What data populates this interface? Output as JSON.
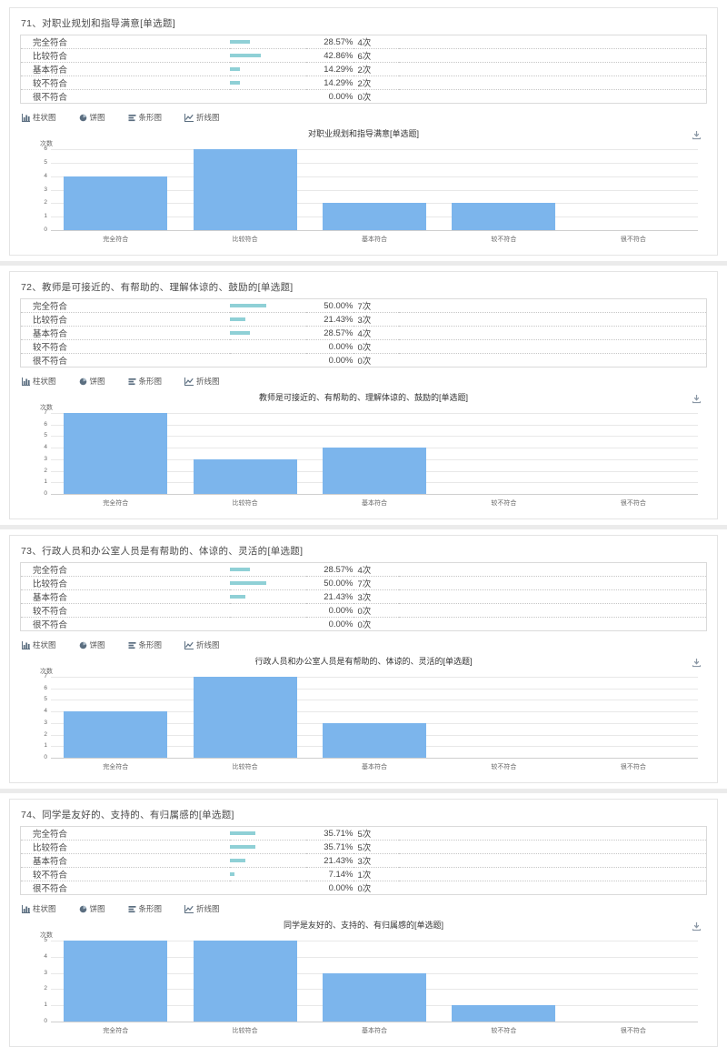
{
  "ui": {
    "y_axis_label": "次数",
    "chart_type_buttons": [
      {
        "label": "柱状图",
        "icon": "bar-chart-icon"
      },
      {
        "label": "饼图",
        "icon": "pie-chart-icon"
      },
      {
        "label": "条形图",
        "icon": "horizontal-bar-chart-icon"
      },
      {
        "label": "折线图",
        "icon": "line-chart-icon"
      }
    ],
    "download_icon": "download-icon",
    "colors": {
      "table_percent_bar": "#8fd0d6",
      "chart_bar": "#7cb5ec",
      "grid_line": "#e8e8e8",
      "panel_border": "#e4e4e4"
    }
  },
  "questions": [
    {
      "title": "71、对职业规划和指导满意[单选题]",
      "rows": [
        {
          "label": "完全符合",
          "percent": "28.57%",
          "count": "4次",
          "value": 28.57
        },
        {
          "label": "比较符合",
          "percent": "42.86%",
          "count": "6次",
          "value": 42.86
        },
        {
          "label": "基本符合",
          "percent": "14.29%",
          "count": "2次",
          "value": 14.29
        },
        {
          "label": "较不符合",
          "percent": "14.29%",
          "count": "2次",
          "value": 14.29
        },
        {
          "label": "很不符合",
          "percent": "0.00%",
          "count": "0次",
          "value": 0
        }
      ]
    },
    {
      "title": "72、教师是可接近的、有帮助的、理解体谅的、鼓励的[单选题]",
      "rows": [
        {
          "label": "完全符合",
          "percent": "50.00%",
          "count": "7次",
          "value": 50.0
        },
        {
          "label": "比较符合",
          "percent": "21.43%",
          "count": "3次",
          "value": 21.43
        },
        {
          "label": "基本符合",
          "percent": "28.57%",
          "count": "4次",
          "value": 28.57
        },
        {
          "label": "较不符合",
          "percent": "0.00%",
          "count": "0次",
          "value": 0
        },
        {
          "label": "很不符合",
          "percent": "0.00%",
          "count": "0次",
          "value": 0
        }
      ]
    },
    {
      "title": "73、行政人员和办公室人员是有帮助的、体谅的、灵活的[单选题]",
      "rows": [
        {
          "label": "完全符合",
          "percent": "28.57%",
          "count": "4次",
          "value": 28.57
        },
        {
          "label": "比较符合",
          "percent": "50.00%",
          "count": "7次",
          "value": 50.0
        },
        {
          "label": "基本符合",
          "percent": "21.43%",
          "count": "3次",
          "value": 21.43
        },
        {
          "label": "较不符合",
          "percent": "0.00%",
          "count": "0次",
          "value": 0
        },
        {
          "label": "很不符合",
          "percent": "0.00%",
          "count": "0次",
          "value": 0
        }
      ]
    },
    {
      "title": "74、同学是友好的、支持的、有归属感的[单选题]",
      "rows": [
        {
          "label": "完全符合",
          "percent": "35.71%",
          "count": "5次",
          "value": 35.71
        },
        {
          "label": "比较符合",
          "percent": "35.71%",
          "count": "5次",
          "value": 35.71
        },
        {
          "label": "基本符合",
          "percent": "21.43%",
          "count": "3次",
          "value": 21.43
        },
        {
          "label": "较不符合",
          "percent": "7.14%",
          "count": "1次",
          "value": 7.14
        },
        {
          "label": "很不符合",
          "percent": "0.00%",
          "count": "0次",
          "value": 0
        }
      ]
    }
  ],
  "chart_data": [
    {
      "type": "bar",
      "title": "对职业规划和指导满意[单选题]",
      "categories": [
        "完全符合",
        "比较符合",
        "基本符合",
        "较不符合",
        "很不符合"
      ],
      "values": [
        4,
        6,
        2,
        2,
        0
      ],
      "xlabel": "",
      "ylabel": "次数",
      "ylim": [
        0,
        6
      ],
      "grid": true,
      "legend": "none"
    },
    {
      "type": "bar",
      "title": "教师是可接近的、有帮助的、理解体谅的、鼓励的[单选题]",
      "categories": [
        "完全符合",
        "比较符合",
        "基本符合",
        "较不符合",
        "很不符合"
      ],
      "values": [
        7,
        3,
        4,
        0,
        0
      ],
      "xlabel": "",
      "ylabel": "次数",
      "ylim": [
        0,
        7
      ],
      "grid": true,
      "legend": "none"
    },
    {
      "type": "bar",
      "title": "行政人员和办公室人员是有帮助的、体谅的、灵活的[单选题]",
      "categories": [
        "完全符合",
        "比较符合",
        "基本符合",
        "较不符合",
        "很不符合"
      ],
      "values": [
        4,
        7,
        3,
        0,
        0
      ],
      "xlabel": "",
      "ylabel": "次数",
      "ylim": [
        0,
        7
      ],
      "grid": true,
      "legend": "none"
    },
    {
      "type": "bar",
      "title": "同学是友好的、支持的、有归属感的[单选题]",
      "categories": [
        "完全符合",
        "比较符合",
        "基本符合",
        "较不符合",
        "很不符合"
      ],
      "values": [
        5,
        5,
        3,
        1,
        0
      ],
      "xlabel": "",
      "ylabel": "次数",
      "ylim": [
        0,
        5
      ],
      "grid": true,
      "legend": "none"
    }
  ]
}
